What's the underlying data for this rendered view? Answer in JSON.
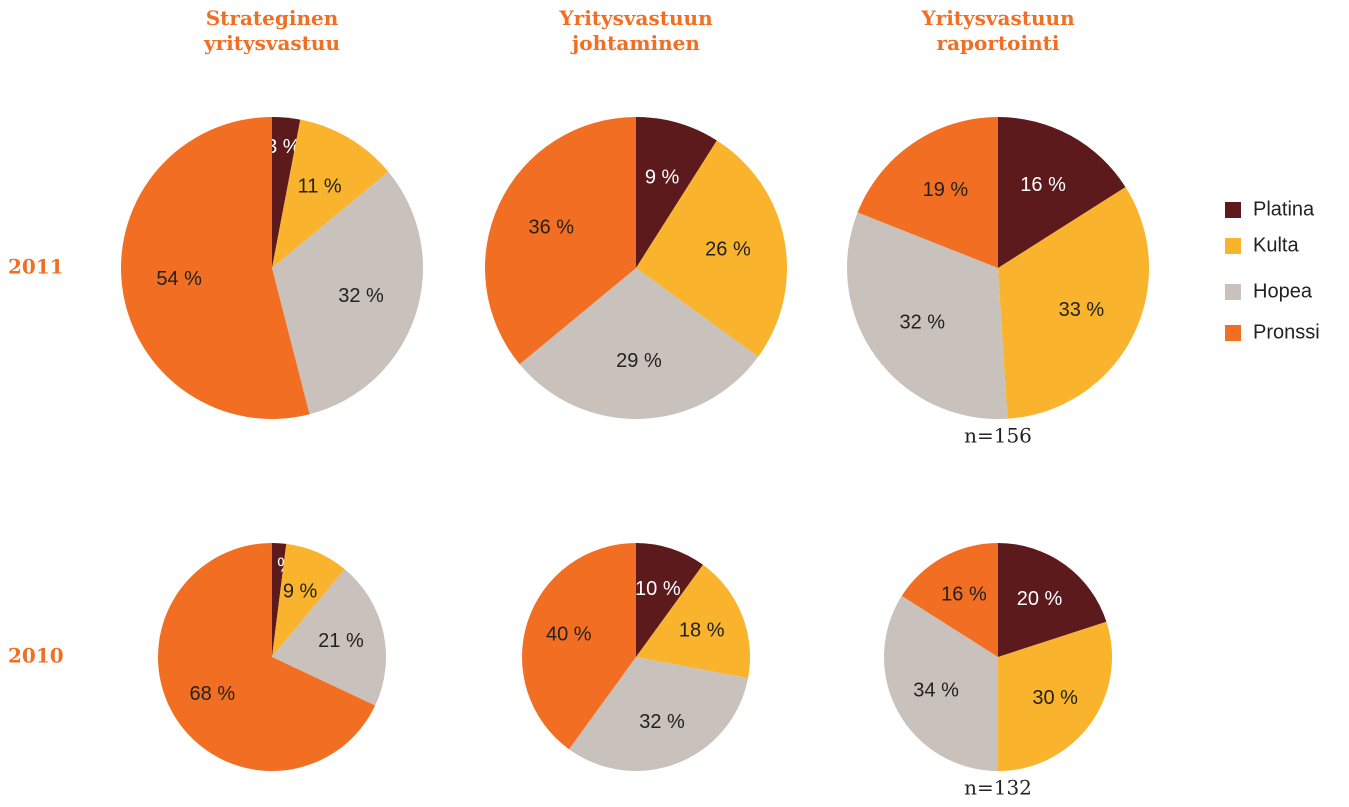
{
  "column_titles": [
    "Strateginen yritysvastuu",
    "Yritysvastuun johtaminen",
    "Yritysvastuun raportointi"
  ],
  "row_labels": [
    "2011",
    "2010"
  ],
  "legend": {
    "labels": [
      "Platina",
      "Kulta",
      "Hopea",
      "Pronssi"
    ],
    "colors": [
      "#5c1a1d",
      "#f9b32c",
      "#c9c1bb",
      "#f26e22"
    ]
  },
  "chart_data": [
    {
      "type": "pie",
      "values": [
        3,
        11,
        32,
        54
      ],
      "value_labels": [
        "3 %",
        "11 %",
        "32 %",
        "54 %"
      ]
    },
    {
      "type": "pie",
      "values": [
        9,
        26,
        29,
        36
      ],
      "value_labels": [
        "9 %",
        "26 %",
        "29 %",
        "36 %"
      ]
    },
    {
      "type": "pie",
      "values": [
        16,
        33,
        32,
        19
      ],
      "value_labels": [
        "16 %",
        "33 %",
        "32 %",
        "19 %"
      ],
      "note": "n=156"
    },
    {
      "type": "pie",
      "values": [
        2,
        9,
        21,
        68
      ],
      "value_labels": [
        "2 %",
        "9 %",
        "21 %",
        "68 %"
      ]
    },
    {
      "type": "pie",
      "values": [
        10,
        18,
        32,
        40
      ],
      "value_labels": [
        "10 %",
        "18 %",
        "32 %",
        "40 %"
      ]
    },
    {
      "type": "pie",
      "values": [
        20,
        30,
        34,
        16
      ],
      "value_labels": [
        "20 %",
        "30 %",
        "34 %",
        "16 %"
      ],
      "note": "n=132"
    }
  ]
}
